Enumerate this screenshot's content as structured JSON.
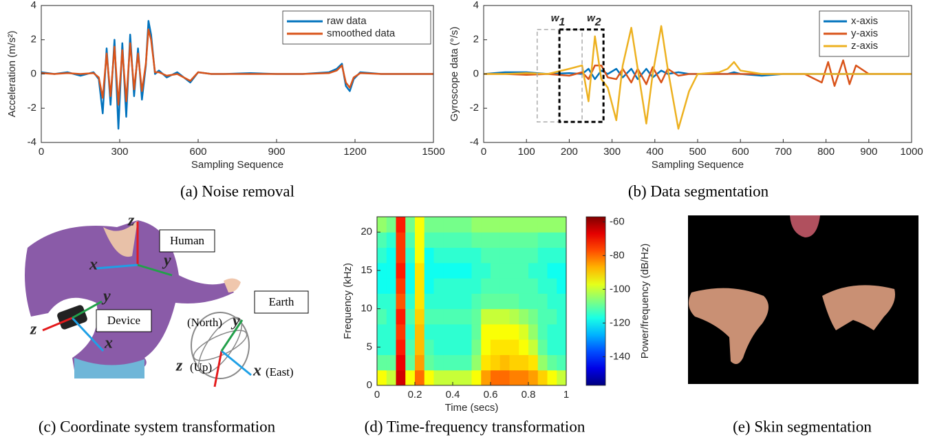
{
  "chart_data": [
    {
      "type": "line",
      "caption": "(a) Noise removal",
      "xlabel": "Sampling Sequence",
      "ylabel": "Acceleration (m/s²)",
      "x": [
        0,
        50,
        100,
        150,
        200,
        220,
        235,
        250,
        265,
        280,
        295,
        310,
        325,
        340,
        355,
        370,
        385,
        400,
        410,
        420,
        435,
        450,
        480,
        520,
        570,
        600,
        650,
        700,
        800,
        900,
        1000,
        1100,
        1130,
        1150,
        1165,
        1180,
        1195,
        1220,
        1300,
        1400,
        1500
      ],
      "series": [
        {
          "name": "raw data",
          "color": "#0072bd",
          "values": [
            0.1,
            0,
            0.1,
            -0.1,
            0.1,
            -0.3,
            -2.3,
            1.5,
            -1.8,
            2.0,
            -3.2,
            1.8,
            -2.5,
            2.3,
            -1.3,
            1.5,
            -1.5,
            0.5,
            3.1,
            2.3,
            0,
            0.2,
            -0.2,
            0.1,
            -0.5,
            0.1,
            0,
            0,
            0.05,
            0,
            0,
            0.1,
            0.3,
            0.6,
            -0.7,
            -1.0,
            -0.3,
            0.1,
            0,
            0,
            0
          ]
        },
        {
          "name": "smoothed data",
          "color": "#d95319",
          "values": [
            0.05,
            0,
            0.05,
            0,
            0.05,
            -0.2,
            -1.4,
            1.2,
            -1.3,
            1.6,
            -1.8,
            1.4,
            -1.6,
            1.8,
            -0.9,
            1.2,
            -1,
            0.6,
            2.6,
            2.0,
            0.1,
            0.1,
            -0.1,
            0,
            -0.4,
            0.1,
            0,
            0,
            0,
            0,
            0,
            0.05,
            0.2,
            0.5,
            -0.5,
            -0.8,
            -0.2,
            0.05,
            0,
            0,
            0
          ]
        }
      ],
      "xlim": [
        0,
        1500
      ],
      "xticks": [
        0,
        300,
        600,
        900,
        1200,
        1500
      ],
      "ylim": [
        -4,
        4
      ],
      "yticks": [
        -4,
        -2,
        0,
        2,
        4
      ],
      "legend": "upper right"
    },
    {
      "type": "line",
      "caption": "(b) Data segmentation",
      "xlabel": "Sampling Sequence",
      "ylabel": "Gyroscope data (°/s)",
      "x": [
        0,
        50,
        100,
        150,
        200,
        230,
        245,
        260,
        275,
        290,
        310,
        325,
        345,
        360,
        380,
        395,
        415,
        430,
        455,
        480,
        500,
        550,
        570,
        585,
        600,
        650,
        700,
        750,
        790,
        805,
        820,
        840,
        855,
        870,
        900,
        950,
        1000
      ],
      "series": [
        {
          "name": "x-axis",
          "color": "#0072bd",
          "values": [
            0,
            0.1,
            0.1,
            0,
            0.05,
            0,
            0.3,
            -0.3,
            0.2,
            0,
            0.3,
            -0.2,
            0.3,
            -0.3,
            0.3,
            -0.2,
            0.2,
            0,
            0.1,
            0,
            0,
            0,
            0,
            0.1,
            0,
            -0.1,
            0,
            0,
            0,
            0,
            0,
            0,
            0,
            0,
            0,
            0,
            0
          ]
        },
        {
          "name": "y-axis",
          "color": "#d95319",
          "values": [
            0,
            0,
            -0.05,
            0,
            -0.1,
            0.1,
            -0.3,
            0.5,
            0.5,
            -0.2,
            -0.3,
            0.3,
            -0.5,
            0.3,
            -0.6,
            0.4,
            -0.5,
            0.3,
            -0.1,
            0,
            0,
            0,
            0,
            0,
            0,
            0,
            0,
            0,
            -0.5,
            0.7,
            -0.7,
            0.8,
            -0.6,
            0.5,
            0,
            0,
            0
          ]
        },
        {
          "name": "z-axis",
          "color": "#edb120",
          "values": [
            0,
            0,
            0.05,
            0,
            0.3,
            0.5,
            -1.6,
            2.2,
            -0.3,
            -0.8,
            -2.7,
            0.5,
            2.7,
            0.3,
            -2.9,
            0,
            2.8,
            0.3,
            -3.2,
            -1,
            0,
            0.1,
            0.3,
            0.7,
            0.2,
            0,
            0,
            0,
            0,
            0,
            0,
            0,
            0,
            0,
            0,
            0,
            0
          ]
        }
      ],
      "xlim": [
        0,
        1000
      ],
      "xticks": [
        0,
        100,
        200,
        300,
        400,
        500,
        600,
        700,
        800,
        900,
        1000
      ],
      "ylim": [
        -4,
        4
      ],
      "yticks": [
        -4,
        -2,
        0,
        2,
        4
      ],
      "legend": "upper right",
      "windows": [
        {
          "label": "w",
          "sub": "1",
          "x": [
            125,
            230
          ],
          "y": [
            -2.8,
            2.6
          ],
          "color": "#aaaaaa"
        },
        {
          "label": "w",
          "sub": "2",
          "x": [
            177,
            280
          ],
          "y": [
            -2.8,
            2.6
          ],
          "color": "#000000"
        }
      ]
    },
    {
      "type": "heatmap",
      "caption": "(d) Time-frequency transformation",
      "xlabel": "Time (secs)",
      "ylabel": "Frequency (kHz)",
      "xlim": [
        0,
        1
      ],
      "xticks": [
        0,
        0.2,
        0.4,
        0.6,
        0.8,
        1
      ],
      "ylim": [
        0,
        22
      ],
      "yticks": [
        0,
        5,
        10,
        15,
        20
      ],
      "colormap": "jet",
      "colorbar": {
        "label": "Power/frequency (dB/Hz)",
        "lim": [
          -157,
          -57
        ],
        "ticks": [
          -60,
          -80,
          -100,
          -120,
          -140
        ]
      },
      "z": [
        [
          -95,
          -100,
          -65,
          -95,
          -80,
          -95,
          -100,
          -100,
          -100,
          -100,
          -95,
          -85,
          -80,
          -80,
          -82,
          -82,
          -85,
          -90,
          -95,
          -100
        ],
        [
          -110,
          -110,
          -68,
          -110,
          -85,
          -110,
          -112,
          -112,
          -112,
          -112,
          -105,
          -92,
          -90,
          -88,
          -90,
          -90,
          -92,
          -105,
          -110,
          -112
        ],
        [
          -115,
          -115,
          -72,
          -112,
          -88,
          -112,
          -115,
          -115,
          -115,
          -115,
          -108,
          -95,
          -92,
          -92,
          -92,
          -95,
          -100,
          -110,
          -115,
          -115
        ],
        [
          -115,
          -115,
          -75,
          -115,
          -88,
          -115,
          -115,
          -115,
          -115,
          -115,
          -110,
          -95,
          -95,
          -95,
          -95,
          -98,
          -105,
          -112,
          -115,
          -115
        ],
        [
          -112,
          -115,
          -72,
          -112,
          -90,
          -112,
          -112,
          -112,
          -112,
          -112,
          -110,
          -100,
          -100,
          -100,
          -102,
          -105,
          -108,
          -112,
          -112,
          -115
        ],
        [
          -115,
          -115,
          -78,
          -115,
          -92,
          -115,
          -115,
          -115,
          -115,
          -115,
          -112,
          -110,
          -110,
          -110,
          -110,
          -112,
          -112,
          -112,
          -115,
          -115
        ],
        [
          -118,
          -118,
          -75,
          -118,
          -92,
          -118,
          -115,
          -115,
          -115,
          -115,
          -115,
          -112,
          -112,
          -112,
          -112,
          -112,
          -112,
          -115,
          -115,
          -118
        ],
        [
          -118,
          -118,
          -72,
          -118,
          -92,
          -118,
          -118,
          -118,
          -118,
          -118,
          -115,
          -115,
          -112,
          -112,
          -112,
          -112,
          -115,
          -115,
          -118,
          -118
        ],
        [
          -115,
          -118,
          -75,
          -115,
          -95,
          -118,
          -115,
          -115,
          -115,
          -115,
          -115,
          -112,
          -112,
          -112,
          -112,
          -112,
          -112,
          -115,
          -115,
          -115
        ],
        [
          -112,
          -115,
          -75,
          -112,
          -95,
          -112,
          -112,
          -112,
          -112,
          -112,
          -110,
          -110,
          -110,
          -110,
          -110,
          -110,
          -110,
          -112,
          -112,
          -112
        ],
        [
          -105,
          -108,
          -72,
          -108,
          -95,
          -108,
          -108,
          -108,
          -108,
          -108,
          -105,
          -105,
          -105,
          -105,
          -105,
          -105,
          -105,
          -105,
          -105,
          -105
        ]
      ]
    }
  ],
  "diagram": {
    "caption": "(c) Coordinate system transformation",
    "boxes": [
      "Human",
      "Device",
      "Earth"
    ],
    "axis_letters": [
      "z",
      "x",
      "y",
      "z",
      "y",
      "x",
      "y",
      "z",
      "x"
    ],
    "notes": [
      "(North)",
      "(Up)",
      "(East)"
    ]
  },
  "image": {
    "caption": "(e) Skin segmentation"
  }
}
